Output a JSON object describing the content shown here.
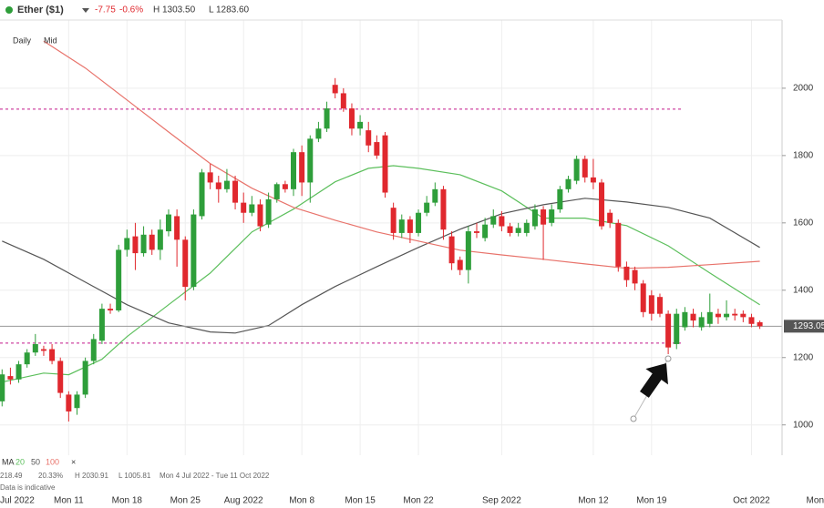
{
  "chart_data": {
    "type": "candlestick",
    "title": "Ether ($1)",
    "change": "-7.75",
    "change_pct": "-0.6%",
    "session_high": "H 1303.50",
    "session_low": "L 1283.60",
    "interval": "Daily",
    "price_type": "Mid",
    "ma_label": "MA",
    "ma_close": "×",
    "stats": [
      "218.49",
      "20.33%",
      "H 2030.91",
      "L 1005.81",
      "Mon 4 Jul 2022 - Tue 11 Oct 2022"
    ],
    "note": "Data is indicative",
    "up_color": "#2e9e3a",
    "down_color": "#e0282e",
    "x": [
      "2022-07-03",
      "2022-07-04",
      "2022-07-05",
      "2022-07-06",
      "2022-07-07",
      "2022-07-08",
      "2022-07-09",
      "2022-07-10",
      "2022-07-11",
      "2022-07-12",
      "2022-07-13",
      "2022-07-14",
      "2022-07-15",
      "2022-07-16",
      "2022-07-17",
      "2022-07-18",
      "2022-07-19",
      "2022-07-20",
      "2022-07-21",
      "2022-07-22",
      "2022-07-23",
      "2022-07-24",
      "2022-07-25",
      "2022-07-26",
      "2022-07-27",
      "2022-07-28",
      "2022-07-29",
      "2022-07-30",
      "2022-07-31",
      "2022-08-01",
      "2022-08-02",
      "2022-08-03",
      "2022-08-04",
      "2022-08-05",
      "2022-08-06",
      "2022-08-07",
      "2022-08-08",
      "2022-08-09",
      "2022-08-10",
      "2022-08-11",
      "2022-08-12",
      "2022-08-13",
      "2022-08-14",
      "2022-08-15",
      "2022-08-16",
      "2022-08-17",
      "2022-08-18",
      "2022-08-19",
      "2022-08-20",
      "2022-08-21",
      "2022-08-22",
      "2022-08-23",
      "2022-08-24",
      "2022-08-25",
      "2022-08-26",
      "2022-08-27",
      "2022-08-28",
      "2022-08-29",
      "2022-08-30",
      "2022-08-31",
      "2022-09-01",
      "2022-09-02",
      "2022-09-03",
      "2022-09-04",
      "2022-09-05",
      "2022-09-06",
      "2022-09-07",
      "2022-09-08",
      "2022-09-09",
      "2022-09-10",
      "2022-09-11",
      "2022-09-12",
      "2022-09-13",
      "2022-09-14",
      "2022-09-15",
      "2022-09-16",
      "2022-09-17",
      "2022-09-18",
      "2022-09-19",
      "2022-09-20",
      "2022-09-21",
      "2022-09-22",
      "2022-09-23",
      "2022-09-24",
      "2022-09-25",
      "2022-09-26",
      "2022-09-27",
      "2022-09-28",
      "2022-09-29",
      "2022-09-30",
      "2022-10-01",
      "2022-10-02"
    ],
    "open": [
      1070,
      1145,
      1135,
      1180,
      1215,
      1225,
      1225,
      1190,
      1090,
      1050,
      1090,
      1190,
      1250,
      1345,
      1340,
      1520,
      1560,
      1510,
      1565,
      1520,
      1575,
      1620,
      1550,
      1410,
      1620,
      1750,
      1720,
      1700,
      1725,
      1660,
      1630,
      1655,
      1595,
      1670,
      1715,
      1700,
      1810,
      1720,
      1850,
      1880,
      2010,
      1985,
      1940,
      1880,
      1875,
      1840,
      1860,
      1645,
      1570,
      1610,
      1570,
      1630,
      1660,
      1700,
      1560,
      1490,
      1460,
      1575,
      1555,
      1595,
      1620,
      1590,
      1570,
      1570,
      1590,
      1640,
      1600,
      1640,
      1700,
      1725,
      1790,
      1735,
      1720,
      1630,
      1600,
      1470,
      1460,
      1420,
      1385,
      1380,
      1330,
      1240,
      1290,
      1330,
      1290,
      1300,
      1330,
      1320,
      1330,
      1330,
      1320,
      1305
    ],
    "high": [
      1165,
      1170,
      1190,
      1225,
      1270,
      1235,
      1240,
      1200,
      1100,
      1100,
      1200,
      1270,
      1360,
      1360,
      1535,
      1580,
      1600,
      1590,
      1580,
      1610,
      1640,
      1640,
      1560,
      1640,
      1760,
      1775,
      1740,
      1760,
      1740,
      1690,
      1680,
      1670,
      1690,
      1720,
      1725,
      1820,
      1830,
      1860,
      1900,
      1960,
      2030,
      2000,
      1955,
      1920,
      1900,
      1860,
      1870,
      1660,
      1625,
      1620,
      1640,
      1680,
      1720,
      1710,
      1575,
      1500,
      1590,
      1600,
      1615,
      1640,
      1635,
      1600,
      1600,
      1610,
      1655,
      1650,
      1655,
      1710,
      1740,
      1800,
      1800,
      1790,
      1730,
      1640,
      1610,
      1485,
      1470,
      1430,
      1400,
      1390,
      1340,
      1345,
      1350,
      1345,
      1335,
      1390,
      1345,
      1370,
      1345,
      1340,
      1330,
      1310
    ],
    "low": [
      1055,
      1120,
      1125,
      1170,
      1205,
      1205,
      1180,
      1080,
      1010,
      1030,
      1080,
      1180,
      1240,
      1330,
      1335,
      1500,
      1460,
      1500,
      1505,
      1490,
      1560,
      1470,
      1370,
      1400,
      1610,
      1700,
      1660,
      1690,
      1640,
      1600,
      1620,
      1575,
      1585,
      1660,
      1690,
      1680,
      1680,
      1660,
      1840,
      1870,
      1970,
      1930,
      1860,
      1860,
      1810,
      1790,
      1675,
      1550,
      1555,
      1540,
      1560,
      1620,
      1650,
      1550,
      1460,
      1445,
      1420,
      1555,
      1545,
      1585,
      1575,
      1560,
      1560,
      1560,
      1580,
      1490,
      1590,
      1630,
      1690,
      1715,
      1720,
      1700,
      1580,
      1585,
      1455,
      1410,
      1400,
      1320,
      1310,
      1320,
      1210,
      1225,
      1280,
      1290,
      1280,
      1290,
      1300,
      1310,
      1310,
      1305,
      1290,
      1285
    ],
    "close": [
      1150,
      1135,
      1180,
      1215,
      1240,
      1220,
      1190,
      1095,
      1040,
      1090,
      1190,
      1255,
      1345,
      1340,
      1520,
      1555,
      1510,
      1565,
      1520,
      1580,
      1625,
      1550,
      1410,
      1625,
      1750,
      1720,
      1700,
      1725,
      1660,
      1630,
      1655,
      1590,
      1670,
      1715,
      1700,
      1810,
      1720,
      1850,
      1880,
      1940,
      1985,
      1940,
      1880,
      1900,
      1830,
      1800,
      1690,
      1570,
      1610,
      1570,
      1630,
      1660,
      1700,
      1580,
      1480,
      1460,
      1575,
      1570,
      1595,
      1620,
      1590,
      1570,
      1585,
      1600,
      1640,
      1595,
      1640,
      1700,
      1730,
      1790,
      1735,
      1720,
      1590,
      1600,
      1470,
      1430,
      1420,
      1335,
      1330,
      1330,
      1230,
      1330,
      1335,
      1310,
      1320,
      1335,
      1320,
      1330,
      1325,
      1320,
      1300,
      1293.05
    ],
    "series": [
      {
        "name": "20",
        "color": "#5cbf5c",
        "x": [
          "2022-07-03",
          "2022-07-08",
          "2022-07-11",
          "2022-07-15",
          "2022-07-18",
          "2022-07-23",
          "2022-07-28",
          "2022-08-02",
          "2022-08-07",
          "2022-08-12",
          "2022-08-16",
          "2022-08-19",
          "2022-08-22",
          "2022-08-27",
          "2022-09-01",
          "2022-09-06",
          "2022-09-11",
          "2022-09-16",
          "2022-09-21",
          "2022-09-26",
          "2022-10-02"
        ],
        "values": [
          1127,
          1154,
          1149,
          1195,
          1262,
          1357,
          1451,
          1573,
          1641,
          1722,
          1762,
          1770,
          1762,
          1743,
          1695,
          1614,
          1614,
          1592,
          1532,
          1451,
          1357
        ]
      },
      {
        "name": "50",
        "color": "#555555",
        "x": [
          "2022-07-03",
          "2022-07-08",
          "2022-07-13",
          "2022-07-18",
          "2022-07-23",
          "2022-07-28",
          "2022-07-31",
          "2022-08-04",
          "2022-08-08",
          "2022-08-12",
          "2022-08-17",
          "2022-08-22",
          "2022-08-27",
          "2022-09-01",
          "2022-09-06",
          "2022-09-11",
          "2022-09-16",
          "2022-09-21",
          "2022-09-26",
          "2022-10-02"
        ],
        "values": [
          1546,
          1492,
          1424,
          1357,
          1303,
          1276,
          1273,
          1295,
          1357,
          1411,
          1470,
          1527,
          1581,
          1627,
          1654,
          1673,
          1662,
          1646,
          1614,
          1527
        ]
      },
      {
        "name": "100",
        "color": "#e8736b",
        "x": [
          "2022-07-08",
          "2022-07-13",
          "2022-07-18",
          "2022-07-23",
          "2022-07-28",
          "2022-08-02",
          "2022-08-07",
          "2022-08-12",
          "2022-08-17",
          "2022-08-22",
          "2022-08-27",
          "2022-09-01",
          "2022-09-06",
          "2022-09-11",
          "2022-09-16",
          "2022-09-21",
          "2022-09-26",
          "2022-10-02"
        ],
        "values": [
          2140,
          2060,
          1965,
          1870,
          1776,
          1703,
          1646,
          1608,
          1573,
          1546,
          1519,
          1505,
          1492,
          1478,
          1465,
          1468,
          1476,
          1486
        ]
      }
    ],
    "reference_lines": [
      1938,
      1243
    ],
    "reference_color": "#c2188b",
    "last_price": 1293.05,
    "xlim": [
      "2022-07-01",
      "2022-10-05"
    ],
    "xticks": [
      {
        "value": "2022-07-01",
        "label": "Jul 2022"
      },
      {
        "value": "2022-07-11",
        "label": "Mon 11"
      },
      {
        "value": "2022-07-18",
        "label": "Mon 18"
      },
      {
        "value": "2022-07-25",
        "label": "Mon 25"
      },
      {
        "value": "2022-08-01",
        "label": "Aug 2022"
      },
      {
        "value": "2022-08-08",
        "label": "Mon 8"
      },
      {
        "value": "2022-08-15",
        "label": "Mon 15"
      },
      {
        "value": "2022-08-22",
        "label": "Mon 22"
      },
      {
        "value": "2022-09-01",
        "label": "Sep 2022"
      },
      {
        "value": "2022-09-12",
        "label": "Mon 12"
      },
      {
        "value": "2022-09-19",
        "label": "Mon 19"
      },
      {
        "value": "2022-10-01",
        "label": "Oct 2022"
      },
      {
        "value": "2022-10-10",
        "label": "Mon"
      }
    ],
    "ylim": [
      910,
      2262
    ],
    "yticks": [
      1000,
      1200,
      1400,
      1600,
      1800,
      2000
    ],
    "grid": true
  }
}
